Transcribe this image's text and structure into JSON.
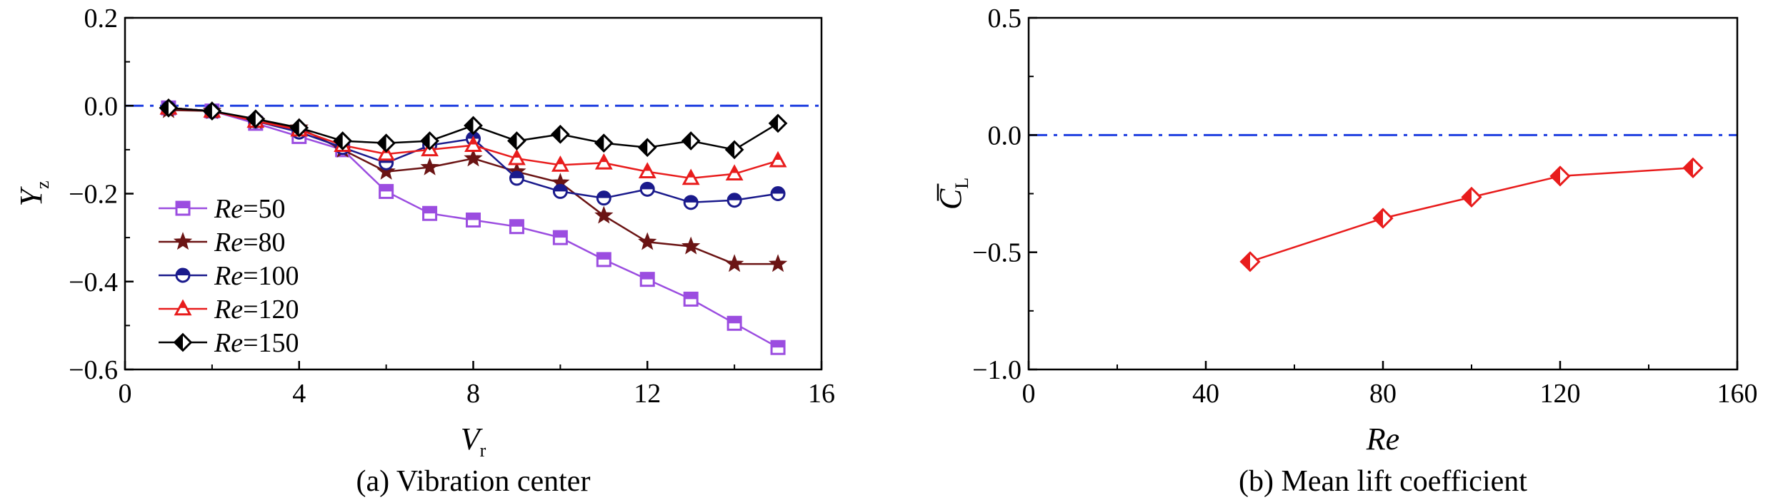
{
  "chart_data": [
    {
      "type": "line",
      "xlabel": "V",
      "xlabel_sub": "r",
      "ylabel": "Y",
      "ylabel_sub": "z",
      "xlim": [
        0,
        16
      ],
      "ylim": [
        -0.6,
        0.2
      ],
      "xticks": [
        0,
        4,
        8,
        12,
        16
      ],
      "yticks": [
        0.2,
        0.0,
        -0.2,
        -0.4,
        -0.6
      ],
      "xtick_labels": [
        "0",
        "4",
        "8",
        "12",
        "16"
      ],
      "ytick_labels": [
        "0.2",
        "0.0",
        "−0.2",
        "−0.4",
        "−0.6"
      ],
      "reference_line_y": 0,
      "legend_position": "lower-left",
      "caption": "(a) Vibration center",
      "x": [
        1,
        2,
        3,
        4,
        5,
        6,
        7,
        8,
        9,
        10,
        11,
        12,
        13,
        14,
        15
      ],
      "series": [
        {
          "name_italic": "Re",
          "name_rest": "=50",
          "color": "#9b4de0",
          "marker": "square",
          "values": [
            -0.005,
            -0.012,
            -0.04,
            -0.07,
            -0.1,
            -0.195,
            -0.245,
            -0.26,
            -0.275,
            -0.3,
            -0.35,
            -0.395,
            -0.44,
            -0.495,
            -0.55
          ]
        },
        {
          "name_italic": "Re",
          "name_rest": "=80",
          "color": "#6b1414",
          "marker": "star",
          "values": [
            -0.01,
            -0.012,
            -0.035,
            -0.05,
            -0.1,
            -0.15,
            -0.14,
            -0.12,
            -0.15,
            -0.175,
            -0.25,
            -0.31,
            -0.32,
            -0.36,
            -0.36
          ]
        },
        {
          "name_italic": "Re",
          "name_rest": "=100",
          "color": "#1a1a8c",
          "marker": "circle",
          "values": [
            -0.005,
            -0.012,
            -0.035,
            -0.06,
            -0.095,
            -0.13,
            -0.09,
            -0.075,
            -0.165,
            -0.195,
            -0.21,
            -0.19,
            -0.22,
            -0.215,
            -0.2
          ]
        },
        {
          "name_italic": "Re",
          "name_rest": "=120",
          "color": "#e81c1c",
          "marker": "triangle",
          "values": [
            -0.005,
            -0.012,
            -0.035,
            -0.055,
            -0.09,
            -0.11,
            -0.1,
            -0.09,
            -0.12,
            -0.135,
            -0.13,
            -0.15,
            -0.165,
            -0.155,
            -0.125
          ]
        },
        {
          "name_italic": "Re",
          "name_rest": "=150",
          "color": "#000000",
          "marker": "diamond",
          "values": [
            -0.005,
            -0.012,
            -0.03,
            -0.05,
            -0.08,
            -0.085,
            -0.08,
            -0.045,
            -0.08,
            -0.065,
            -0.085,
            -0.095,
            -0.08,
            -0.1,
            -0.04
          ]
        }
      ]
    },
    {
      "type": "line",
      "xlabel": "Re",
      "ylabel": "C",
      "ylabel_sub": "L",
      "xlim": [
        0,
        160
      ],
      "ylim": [
        -1.0,
        0.5
      ],
      "xticks": [
        0,
        40,
        80,
        120,
        160
      ],
      "yticks": [
        0.5,
        0.0,
        -0.5,
        -1.0
      ],
      "xtick_labels": [
        "0",
        "40",
        "80",
        "120",
        "160"
      ],
      "ytick_labels": [
        "0.5",
        "0.0",
        "−0.5",
        "−1.0"
      ],
      "reference_line_y": 0,
      "caption": "(b) Mean lift coefficient",
      "x": [
        50,
        80,
        100,
        120,
        150
      ],
      "series": [
        {
          "color": "#e81c1c",
          "marker": "diamond",
          "values": [
            -0.54,
            -0.355,
            -0.265,
            -0.175,
            -0.14
          ]
        }
      ]
    }
  ]
}
